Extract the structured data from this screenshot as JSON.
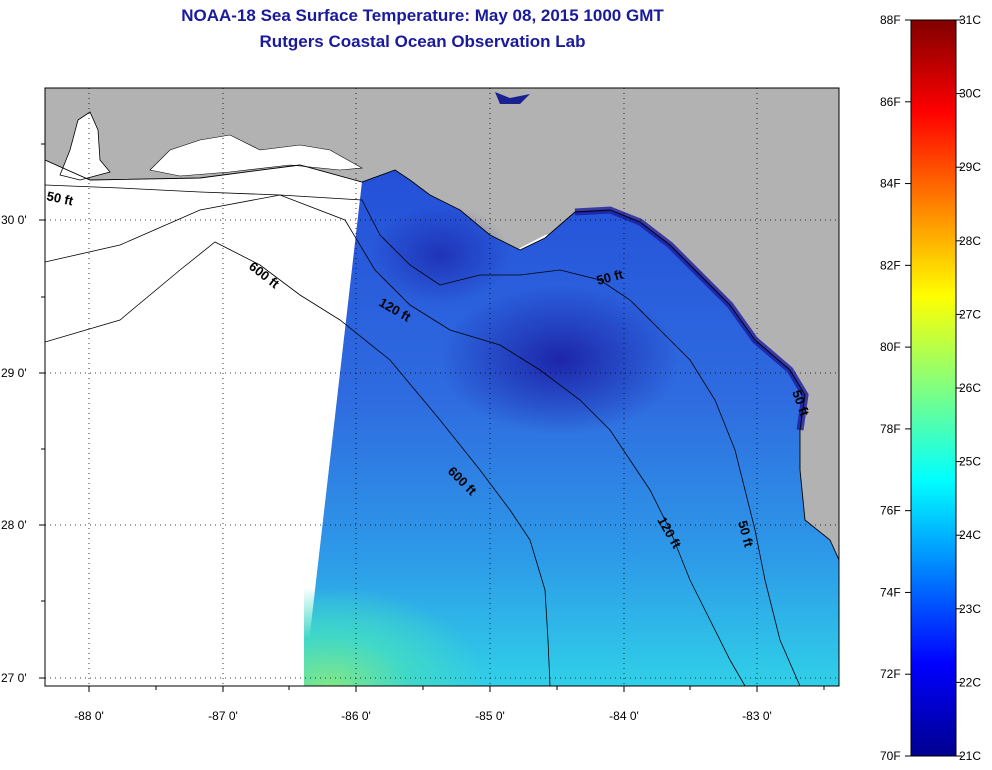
{
  "title": {
    "line1": "NOAA-18 Sea Surface Temperature:  May 08, 2015 1000 GMT",
    "line2": "Rutgers Coastal Ocean Observation Lab"
  },
  "axes": {
    "longitude_labels": [
      "-88 0'",
      "-87 0'",
      "-86 0'",
      "-85 0'",
      "-84 0'",
      "-83 0'"
    ],
    "latitude_labels": [
      "30 0'",
      "29 0'",
      "28 0'",
      "27 0'"
    ]
  },
  "contours": {
    "labels": [
      "50 ft",
      "600 ft",
      "120 ft",
      "50 ft",
      "600 ft",
      "120 ft",
      "50 ft",
      "50 ft"
    ]
  },
  "colorbar": {
    "fahrenheit_labels": [
      "88F",
      "86F",
      "84F",
      "82F",
      "80F",
      "78F",
      "76F",
      "74F",
      "72F",
      "70F"
    ],
    "celsius_labels": [
      "31C",
      "30C",
      "29C",
      "28C",
      "27C",
      "26C",
      "25C",
      "24C",
      "23C",
      "22C",
      "21C"
    ],
    "colors": [
      "#00008f",
      "#0000ff",
      "#0080ff",
      "#00ffff",
      "#80ff80",
      "#ffff00",
      "#ff8000",
      "#ff0000",
      "#800000"
    ]
  },
  "map_colors": {
    "land": "#b2b2b2",
    "no_data": "#ffffff",
    "deep_water": "#1a2cc0",
    "mid_water": "#2f6ce0",
    "warm_water": "#30c8e0"
  }
}
